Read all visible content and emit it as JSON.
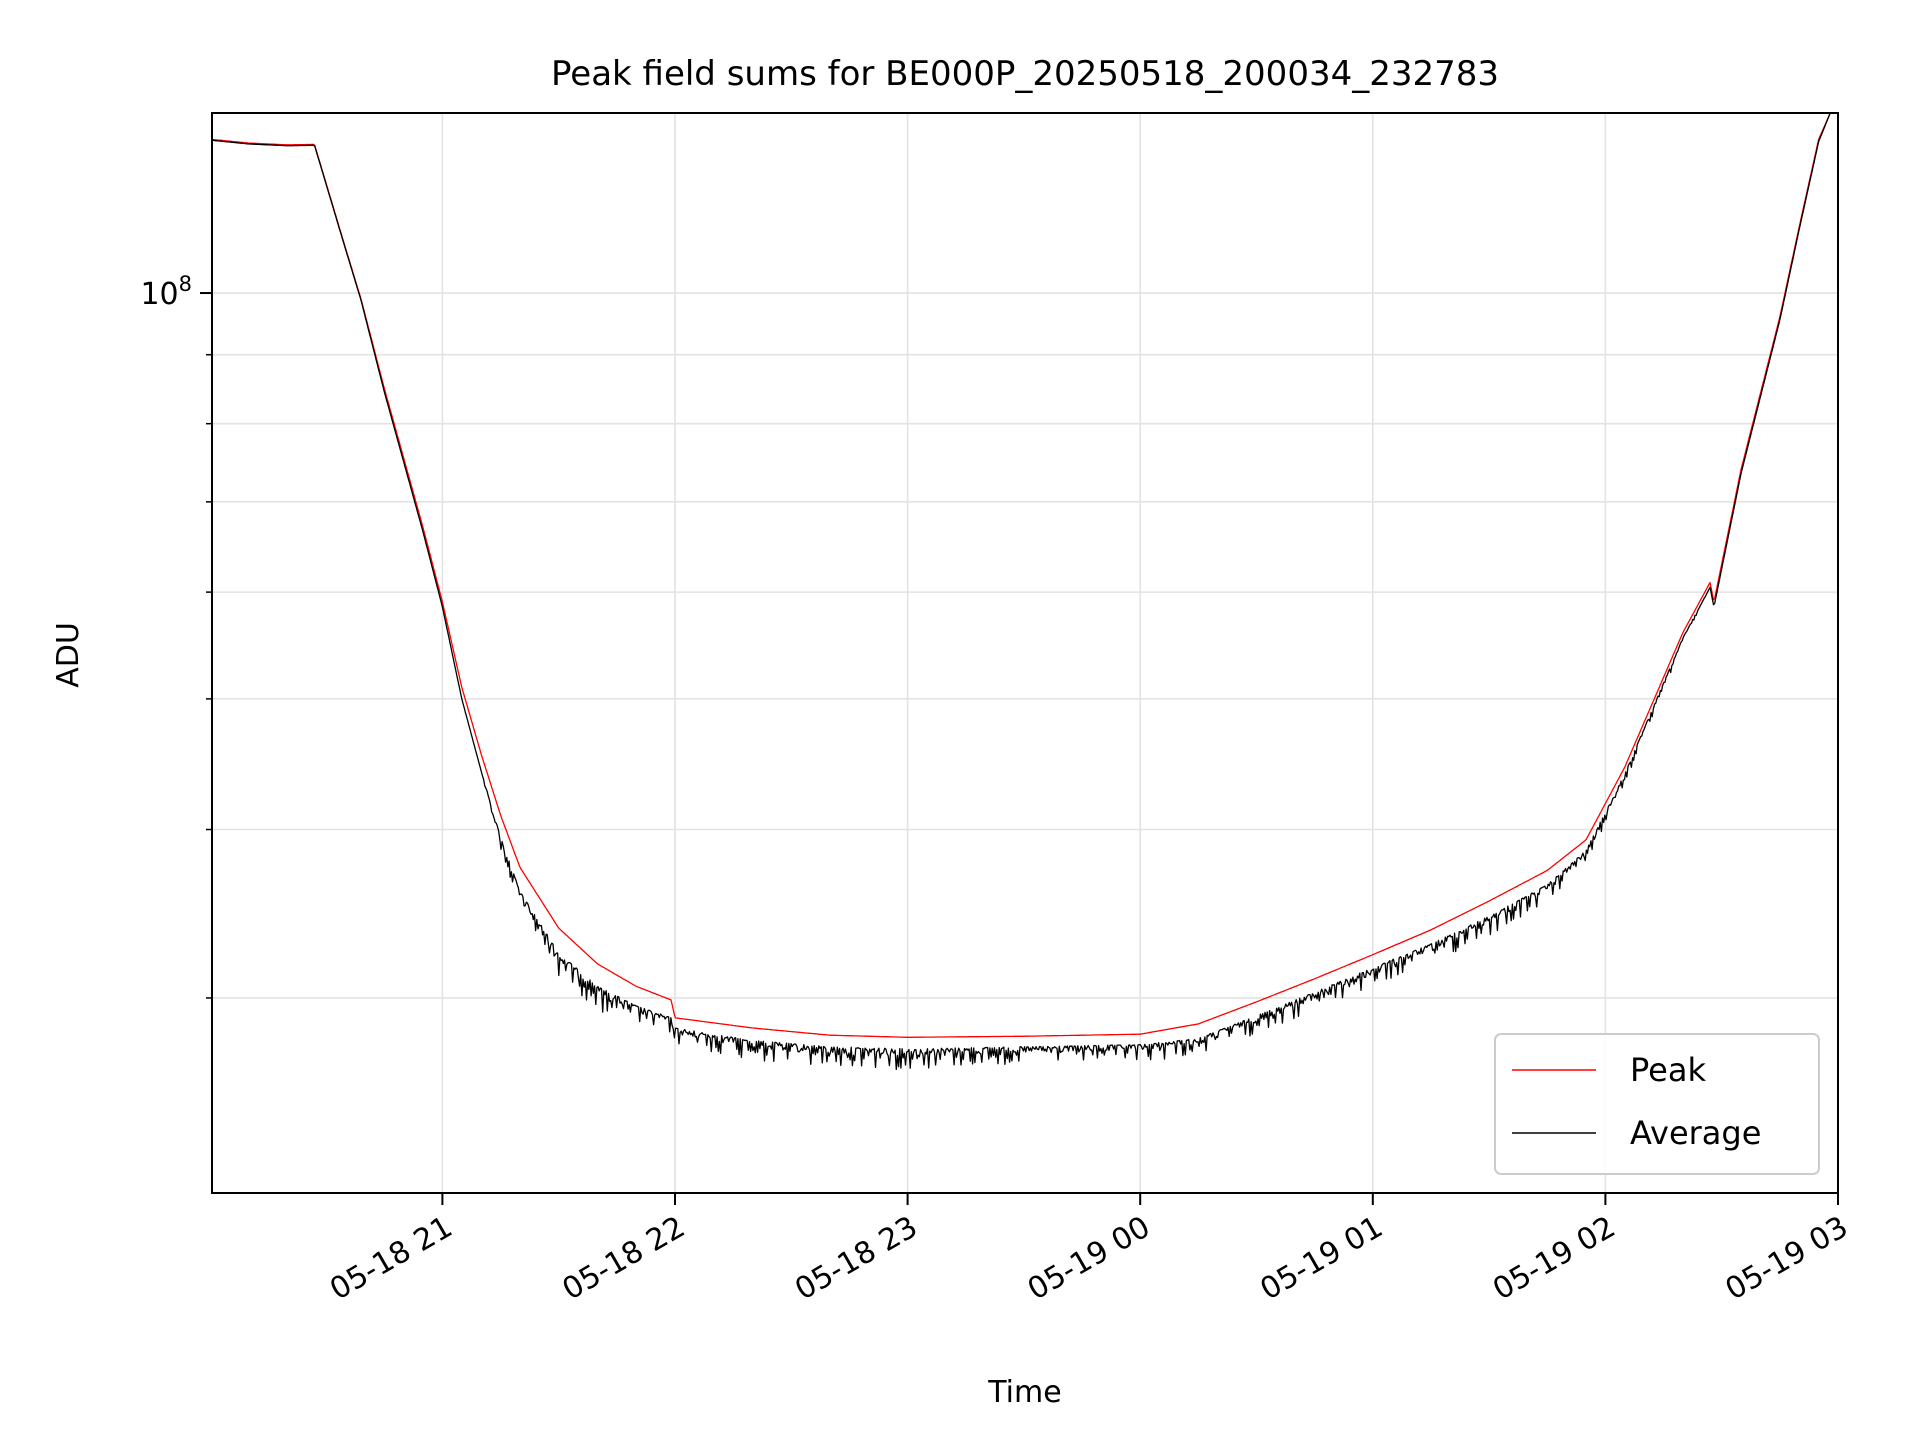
{
  "chart_data": {
    "type": "line",
    "title": "Peak field sums for BE000P_20250518_200034_232783",
    "xlabel": "Time",
    "ylabel": "ADU",
    "yscale": "log",
    "grid": true,
    "legend_position": "lower right",
    "xlim": [
      "2025-05-18 20:00:34",
      "2025-05-19 03:00:00"
    ],
    "ylim": [
      21500000,
      136000000
    ],
    "x_ticks": [
      {
        "value": "2025-05-18 21:00",
        "label": "05-18 21"
      },
      {
        "value": "2025-05-18 22:00",
        "label": "05-18 22"
      },
      {
        "value": "2025-05-18 23:00",
        "label": "05-18 23"
      },
      {
        "value": "2025-05-19 00:00",
        "label": "05-19 00"
      },
      {
        "value": "2025-05-19 01:00",
        "label": "05-19 01"
      },
      {
        "value": "2025-05-19 02:00",
        "label": "05-19 02"
      },
      {
        "value": "2025-05-19 03:00",
        "label": "05-19 03"
      }
    ],
    "y_major_ticks": [
      {
        "value": 100000000,
        "base": "10",
        "exponent": "8"
      }
    ],
    "y_minor_ticks": [
      30000000,
      40000000,
      50000000,
      60000000,
      70000000,
      80000000,
      90000000
    ],
    "series": [
      {
        "name": "Peak",
        "color": "#ff0000",
        "x": [
          "2025-05-18 20:00:34",
          "2025-05-18 20:10",
          "2025-05-18 20:20",
          "2025-05-18 20:27",
          "2025-05-18 20:35",
          "2025-05-18 20:39",
          "2025-05-18 20:45",
          "2025-05-18 20:55",
          "2025-05-18 21:00",
          "2025-05-18 21:05",
          "2025-05-18 21:10",
          "2025-05-18 21:15",
          "2025-05-18 21:20",
          "2025-05-18 21:30",
          "2025-05-18 21:40",
          "2025-05-18 21:50",
          "2025-05-18 21:59",
          "2025-05-18 22:00",
          "2025-05-18 22:20",
          "2025-05-18 22:40",
          "2025-05-18 23:00",
          "2025-05-18 23:30",
          "2025-05-19 00:00",
          "2025-05-19 00:15",
          "2025-05-19 00:30",
          "2025-05-19 00:45",
          "2025-05-19 01:00",
          "2025-05-19 01:15",
          "2025-05-19 01:30",
          "2025-05-19 01:45",
          "2025-05-19 01:55",
          "2025-05-19 02:05",
          "2025-05-19 02:20",
          "2025-05-19 02:27",
          "2025-05-19 02:28",
          "2025-05-19 02:35",
          "2025-05-19 02:45",
          "2025-05-19 02:50",
          "2025-05-19 02:55",
          "2025-05-19 02:58"
        ],
        "values": [
          130000000,
          129200000,
          128800000,
          128900000,
          108000000,
          99000000,
          85000000,
          67000000,
          59000000,
          51000000,
          45500000,
          41000000,
          37500000,
          33800000,
          31800000,
          30600000,
          29900000,
          29000000,
          28500000,
          28150000,
          28050000,
          28100000,
          28200000,
          28700000,
          29800000,
          31000000,
          32300000,
          33700000,
          35400000,
          37300000,
          39300000,
          44500000,
          56000000,
          61000000,
          59000000,
          74000000,
          96000000,
          112000000,
          130000000,
          136000000
        ]
      },
      {
        "name": "Average",
        "color": "#000000",
        "x": [
          "2025-05-18 20:00:34",
          "2025-05-18 20:10",
          "2025-05-18 20:20",
          "2025-05-18 20:27",
          "2025-05-18 20:35",
          "2025-05-18 20:39",
          "2025-05-18 20:45",
          "2025-05-18 20:55",
          "2025-05-18 21:00",
          "2025-05-18 21:05",
          "2025-05-18 21:10",
          "2025-05-18 21:15",
          "2025-05-18 21:20",
          "2025-05-18 21:30",
          "2025-05-18 21:40",
          "2025-05-18 21:50",
          "2025-05-18 21:59",
          "2025-05-18 22:00",
          "2025-05-18 22:20",
          "2025-05-18 22:40",
          "2025-05-18 23:00",
          "2025-05-18 23:30",
          "2025-05-19 00:00",
          "2025-05-19 00:15",
          "2025-05-19 00:30",
          "2025-05-19 00:45",
          "2025-05-19 01:00",
          "2025-05-19 01:15",
          "2025-05-19 01:30",
          "2025-05-19 01:45",
          "2025-05-19 01:55",
          "2025-05-19 02:05",
          "2025-05-19 02:20",
          "2025-05-19 02:27",
          "2025-05-19 02:28",
          "2025-05-19 02:35",
          "2025-05-19 02:45",
          "2025-05-19 02:50",
          "2025-05-19 02:55",
          "2025-05-19 02:58"
        ],
        "values": [
          129800000,
          129000000,
          128600000,
          128700000,
          107800000,
          98800000,
          84500000,
          66500000,
          58500000,
          50000000,
          44200000,
          39500000,
          36000000,
          32400000,
          30600000,
          29600000,
          29000000,
          28500000,
          27900000,
          27600000,
          27500000,
          27600000,
          27700000,
          28000000,
          29100000,
          30300000,
          31600000,
          32900000,
          34500000,
          36400000,
          38600000,
          44000000,
          55500000,
          60500000,
          58500000,
          73500000,
          95500000,
          111500000,
          129500000,
          136000000
        ],
        "noise_down": [
          0,
          0,
          0,
          0,
          0,
          0,
          0,
          0,
          0,
          0,
          0,
          0.03,
          0.035,
          0.04,
          0.04,
          0.035,
          0.03,
          0.03,
          0.035,
          0.04,
          0.035,
          0.03,
          0.03,
          0.03,
          0.03,
          0.035,
          0.035,
          0.035,
          0.035,
          0.03,
          0.025,
          0.02,
          0.01,
          0,
          0,
          0,
          0,
          0,
          0,
          0
        ]
      }
    ]
  }
}
